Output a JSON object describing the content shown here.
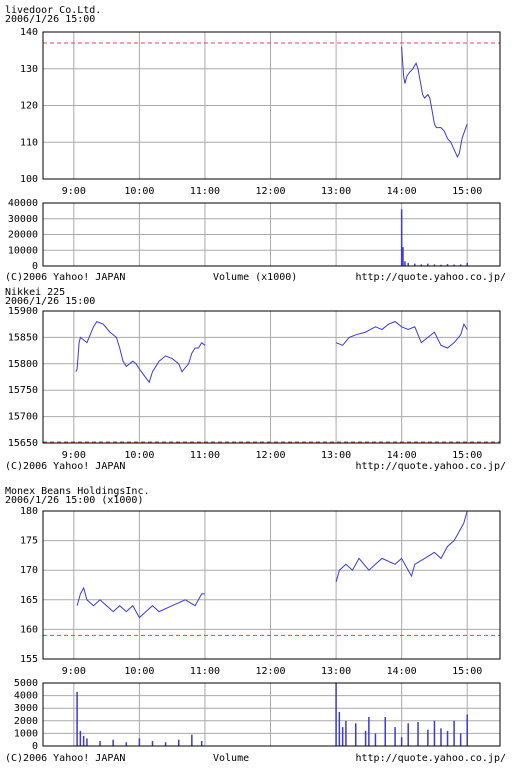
{
  "chart_data": [
    {
      "type": "line",
      "title": "livedoor  Co.Ltd.",
      "subtitle": "2006/1/26 15:00",
      "color": "#3a3ad8",
      "reference": 137,
      "reference_color": "#e04848",
      "x": [
        14.0,
        14.03,
        14.05,
        14.08,
        14.12,
        14.17,
        14.22,
        14.25,
        14.28,
        14.32,
        14.35,
        14.4,
        14.43,
        14.47,
        14.5,
        14.53,
        14.6,
        14.65,
        14.7,
        14.75,
        14.8,
        14.85,
        14.88,
        14.92,
        14.96,
        15.0
      ],
      "values": [
        136,
        128,
        126,
        128,
        129,
        130,
        131.5,
        130,
        127,
        123,
        122,
        123,
        122,
        118,
        115,
        114,
        114,
        113,
        111,
        110,
        108,
        106,
        107,
        111,
        113,
        115
      ],
      "xlim": [
        8.53,
        15.5
      ],
      "ylim": [
        100,
        140
      ],
      "xticks": [
        {
          "value": 9,
          "label": "9:00"
        },
        {
          "value": 10,
          "label": "10:00"
        },
        {
          "value": 11,
          "label": "11:00"
        },
        {
          "value": 12,
          "label": "12:00"
        },
        {
          "value": 13,
          "label": "13:00"
        },
        {
          "value": 14,
          "label": "14:00"
        },
        {
          "value": 15,
          "label": "15:00"
        }
      ],
      "yticks": [
        100,
        110,
        120,
        130,
        140
      ],
      "grid": true
    },
    {
      "type": "bar",
      "color": "#3a3ad8",
      "credit": "(C)2006 Yahoo! JAPAN",
      "axis_label": "Volume (x1000)",
      "url": "http://quote.yahoo.co.jp/",
      "x": [
        14.0,
        14.02,
        14.05,
        14.1,
        14.2,
        14.3,
        14.4,
        14.5,
        14.6,
        14.7,
        14.8,
        14.9,
        15.0
      ],
      "values": [
        36000,
        12000,
        3000,
        2000,
        1500,
        1000,
        1500,
        1000,
        800,
        1200,
        900,
        1000,
        2000
      ],
      "xlim": [
        8.53,
        15.5
      ],
      "ylim": [
        0,
        40000
      ],
      "xticks": [
        9,
        10,
        11,
        12,
        13,
        14,
        15
      ],
      "yticks": [
        0,
        10000,
        20000,
        30000,
        40000
      ],
      "grid": true
    },
    {
      "type": "line",
      "title": "Nikkei 225",
      "subtitle": "2006/1/26 15:00",
      "color": "#3a3ad8",
      "reference": 15652,
      "reference_color": "#e04848",
      "credit": "(C)2006 Yahoo! JAPAN",
      "url": "http://quote.yahoo.co.jp/",
      "x": [
        9.03,
        9.05,
        9.08,
        9.1,
        9.15,
        9.2,
        9.25,
        9.3,
        9.35,
        9.45,
        9.55,
        9.65,
        9.7,
        9.75,
        9.8,
        9.9,
        9.95,
        10.0,
        10.15,
        10.2,
        10.3,
        10.4,
        10.5,
        10.6,
        10.65,
        10.75,
        10.8,
        10.85,
        10.9,
        10.95,
        11.0,
        12.0,
        13.0,
        13.1,
        13.2,
        13.3,
        13.45,
        13.6,
        13.7,
        13.8,
        13.9,
        14.0,
        14.1,
        14.2,
        14.3,
        14.4,
        14.5,
        14.6,
        14.7,
        14.8,
        14.9,
        14.95,
        15.0
      ],
      "values": [
        15785,
        15790,
        15840,
        15850,
        15845,
        15840,
        15855,
        15870,
        15880,
        15875,
        15860,
        15850,
        15830,
        15805,
        15795,
        15805,
        15800,
        15790,
        15765,
        15785,
        15805,
        15815,
        15810,
        15800,
        15785,
        15800,
        15820,
        15830,
        15830,
        15840,
        15835,
        null,
        15840,
        15835,
        15850,
        15855,
        15860,
        15870,
        15865,
        15875,
        15880,
        15870,
        15865,
        15870,
        15840,
        15850,
        15860,
        15835,
        15830,
        15840,
        15855,
        15875,
        15865
      ],
      "xlim": [
        8.53,
        15.5
      ],
      "ylim": [
        15650,
        15900
      ],
      "xticks": [
        {
          "value": 9,
          "label": "9:00"
        },
        {
          "value": 10,
          "label": "10:00"
        },
        {
          "value": 11,
          "label": "11:00"
        },
        {
          "value": 12,
          "label": "12:00"
        },
        {
          "value": 13,
          "label": "13:00"
        },
        {
          "value": 14,
          "label": "14:00"
        },
        {
          "value": 15,
          "label": "15:00"
        }
      ],
      "yticks": [
        15650,
        15700,
        15750,
        15800,
        15850,
        15900
      ],
      "grid": true
    },
    {
      "type": "line",
      "title": "Monex  Beans  HoldingsInc.",
      "subtitle": "2006/1/26 15:00  (x1000)",
      "color": "#3a3ad8",
      "reference": 159,
      "reference_color": "#e04848",
      "x": [
        9.05,
        9.1,
        9.15,
        9.2,
        9.3,
        9.4,
        9.5,
        9.6,
        9.7,
        9.8,
        9.9,
        10.0,
        10.1,
        10.2,
        10.3,
        10.5,
        10.7,
        10.85,
        10.95,
        11.0,
        12.0,
        13.0,
        13.05,
        13.15,
        13.25,
        13.35,
        13.5,
        13.6,
        13.7,
        13.9,
        14.0,
        14.1,
        14.15,
        14.2,
        14.35,
        14.5,
        14.6,
        14.7,
        14.8,
        14.85,
        14.9,
        14.95,
        15.0
      ],
      "values": [
        164,
        166,
        167,
        165,
        164,
        165,
        164,
        163,
        164,
        163,
        164,
        162,
        163,
        164,
        163,
        164,
        165,
        164,
        166,
        166,
        null,
        168,
        170,
        171,
        170,
        172,
        170,
        171,
        172,
        171,
        172,
        170,
        169,
        171,
        172,
        173,
        172,
        174,
        175,
        176,
        177,
        178,
        180
      ],
      "xlim": [
        8.53,
        15.5
      ],
      "ylim": [
        155,
        180
      ],
      "xticks": [
        {
          "value": 9,
          "label": "9:00"
        },
        {
          "value": 10,
          "label": "10:00"
        },
        {
          "value": 11,
          "label": "11:00"
        },
        {
          "value": 12,
          "label": "12:00"
        },
        {
          "value": 13,
          "label": "13:00"
        },
        {
          "value": 14,
          "label": "14:00"
        },
        {
          "value": 15,
          "label": "15:00"
        }
      ],
      "yticks": [
        155,
        160,
        165,
        170,
        175,
        180
      ],
      "grid": true
    },
    {
      "type": "bar",
      "color": "#3a3ad8",
      "credit": "(C)2006 Yahoo! JAPAN",
      "axis_label": "Volume",
      "url": "http://quote.yahoo.co.jp/",
      "x": [
        9.05,
        9.1,
        9.15,
        9.2,
        9.4,
        9.6,
        9.8,
        10.0,
        10.2,
        10.4,
        10.6,
        10.8,
        10.95,
        13.0,
        13.05,
        13.1,
        13.15,
        13.3,
        13.45,
        13.5,
        13.6,
        13.75,
        13.9,
        14.0,
        14.1,
        14.25,
        14.4,
        14.5,
        14.6,
        14.7,
        14.8,
        14.9,
        15.0
      ],
      "values": [
        4300,
        1200,
        800,
        600,
        400,
        500,
        300,
        600,
        400,
        300,
        500,
        900,
        400,
        5000,
        2700,
        1500,
        2000,
        1800,
        1200,
        2300,
        1000,
        2300,
        1500,
        700,
        1800,
        1900,
        1300,
        2000,
        1400,
        1200,
        2000,
        1000,
        2500
      ],
      "xlim": [
        8.53,
        15.5
      ],
      "ylim": [
        0,
        5000
      ],
      "xticks": [
        9,
        10,
        11,
        12,
        13,
        14,
        15
      ],
      "yticks": [
        0,
        1000,
        2000,
        3000,
        4000,
        5000
      ],
      "grid": true
    }
  ]
}
